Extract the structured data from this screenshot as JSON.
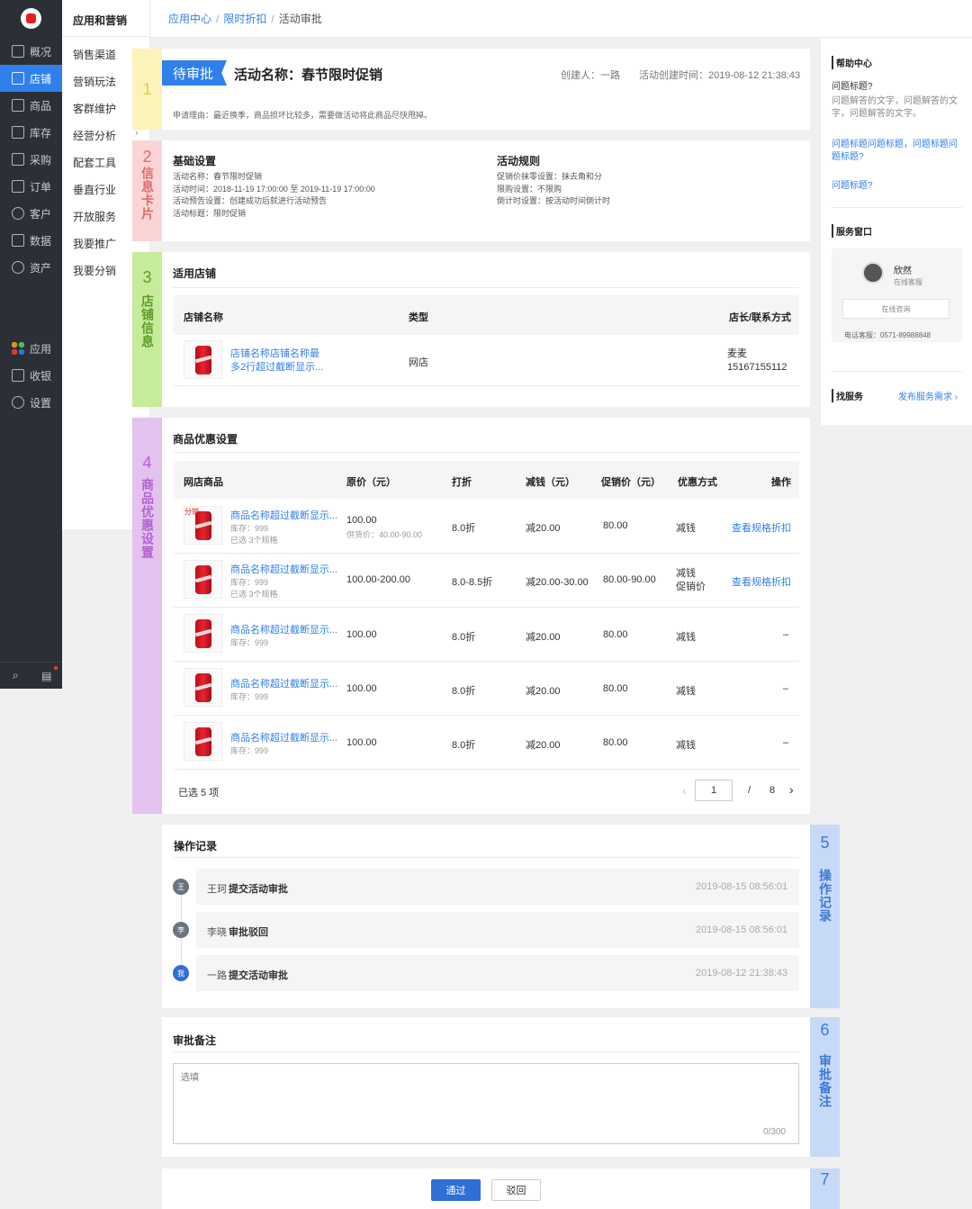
{
  "nav": {
    "items": [
      "概况",
      "店铺",
      "商品",
      "库存",
      "采购",
      "订单",
      "客户",
      "数据",
      "资产"
    ],
    "lower": [
      "应用",
      "收银",
      "设置"
    ]
  },
  "subnav": {
    "title": "应用和营销",
    "items": [
      "销售渠道",
      "营销玩法",
      "客群维护",
      "经营分析",
      "配套工具",
      "垂直行业",
      "开放服务",
      "我要推广",
      "我要分销"
    ]
  },
  "breadcrumb": [
    "应用中心",
    "限时折扣",
    "活动审批"
  ],
  "header": {
    "status": "待审批",
    "title": "活动名称：春节限时促销",
    "creator": "创建人：一路",
    "created_at": "活动创建时间：2019-08-12 21:38:43",
    "reason": "申请理由：最近换季，商品损坏比较多，需要做活动将此商品尽快甩掉。"
  },
  "labels": {
    "s1": {
      "num": "1",
      "text": ""
    },
    "s2": {
      "num": "2",
      "text": "信息卡片"
    },
    "s3": {
      "num": "3",
      "text": "店铺信息"
    },
    "s4": {
      "num": "4",
      "text": "商品优惠设置"
    },
    "s5": {
      "num": "5",
      "text": "操作记录"
    },
    "s6": {
      "num": "6",
      "text": "审批备注"
    },
    "s7": {
      "num": "7",
      "text": ""
    }
  },
  "info": {
    "basic_title": "基础设置",
    "basic": [
      "活动名称：春节限时促销",
      "活动时间：2018-11-19 17:00:00 至 2019-11-19 17:00:00",
      "活动预告设置：创建成功后就进行活动预告",
      "活动标题：限时促销"
    ],
    "rules_title": "活动规则",
    "rules": [
      "促销价抹零设置：抹去角和分",
      "限购设置：不限购",
      "倒计时设置：按活动时间倒计时"
    ]
  },
  "shop": {
    "title": "适用店铺",
    "headers": [
      "店铺名称",
      "类型",
      "店长/联系方式"
    ],
    "name": "店铺名称店铺名称最多2行超过截断显示...",
    "name_line1": "店铺名称店铺名称最",
    "name_line2": "多2行超过截断显示...",
    "type": "网店",
    "manager": "麦麦",
    "phone": "15167155112"
  },
  "goods": {
    "title": "商品优惠设置",
    "headers": [
      "网店商品",
      "原价（元）",
      "打折",
      "减钱（元）",
      "促销价（元）",
      "优惠方式",
      "操作"
    ],
    "rows": [
      {
        "name": "商品名称超过截断显示...",
        "stock": "库存：999",
        "extra": "已选 3个规格",
        "price": "100.00",
        "supply": "供货价：40.00-90.00",
        "discount": "8.0折",
        "minus": "减20.00",
        "promo": "80.00",
        "mode": "减钱",
        "mode2": "",
        "op": "查看规格折扣",
        "tag": "分销"
      },
      {
        "name": "商品名称超过截断显示...",
        "stock": "库存：999",
        "extra": "已选 3个规格",
        "price": "100.00-200.00",
        "supply": "",
        "discount": "8.0-8.5折",
        "minus": "减20.00-30.00",
        "promo": "80.00-90.00",
        "mode": "减钱",
        "mode2": "促销价",
        "op": "查看规格折扣",
        "tag": ""
      },
      {
        "name": "商品名称超过截断显示...",
        "stock": "库存：999",
        "extra": "",
        "price": "100.00",
        "supply": "",
        "discount": "8.0折",
        "minus": "减20.00",
        "promo": "80.00",
        "mode": "减钱",
        "mode2": "",
        "op": "–",
        "tag": ""
      },
      {
        "name": "商品名称超过截断显示...",
        "stock": "库存：999",
        "extra": "",
        "price": "100.00",
        "supply": "",
        "discount": "8.0折",
        "minus": "减20.00",
        "promo": "80.00",
        "mode": "减钱",
        "mode2": "",
        "op": "–",
        "tag": ""
      },
      {
        "name": "商品名称超过截断显示...",
        "stock": "库存：999",
        "extra": "",
        "price": "100.00",
        "supply": "",
        "discount": "8.0折",
        "minus": "减20.00",
        "promo": "80.00",
        "mode": "减钱",
        "mode2": "",
        "op": "–",
        "tag": ""
      }
    ],
    "selected": "已选 5 项",
    "page": "1",
    "total_pages": "8"
  },
  "records": {
    "title": "操作记录",
    "items": [
      {
        "avatar": "王",
        "user": "王珂",
        "action": "提交活动审批",
        "time": "2019-08-15 08:56:01",
        "color": "#6b7280"
      },
      {
        "avatar": "李",
        "user": "李晓",
        "action": "审批驳回",
        "time": "2019-08-15 08:56:01",
        "color": "#6b7280"
      },
      {
        "avatar": "我",
        "user": "一路",
        "action": "提交活动审批",
        "time": "2019-08-12 21:38:43",
        "color": "#2f6fd6"
      }
    ]
  },
  "remark": {
    "title": "审批备注",
    "placeholder": "选填",
    "counter": "0/300"
  },
  "actions": {
    "approve": "通过",
    "reject": "驳回"
  },
  "help": {
    "title": "帮助中心",
    "q1": "问题标题?",
    "a1": "问题解答的文字，问题解答的文字，问题解答的文字。",
    "link1": "问题标题问题标题，问题标题问题标题?",
    "link2": "问题标题?"
  },
  "service": {
    "title": "服务窗口",
    "name": "欣然",
    "role": "在线客服",
    "consult": "在线咨询",
    "phone": "电话客服：0571-89988848"
  },
  "find": {
    "title": "找服务",
    "link": "发布服务需求"
  },
  "colors": {
    "accent": "#2f80ed",
    "label1": "#fbf3b8",
    "label2": "#fbd5d5",
    "label3": "#c6ec9a",
    "label4": "#e3c2ef",
    "label5": "#c6d9f6"
  }
}
